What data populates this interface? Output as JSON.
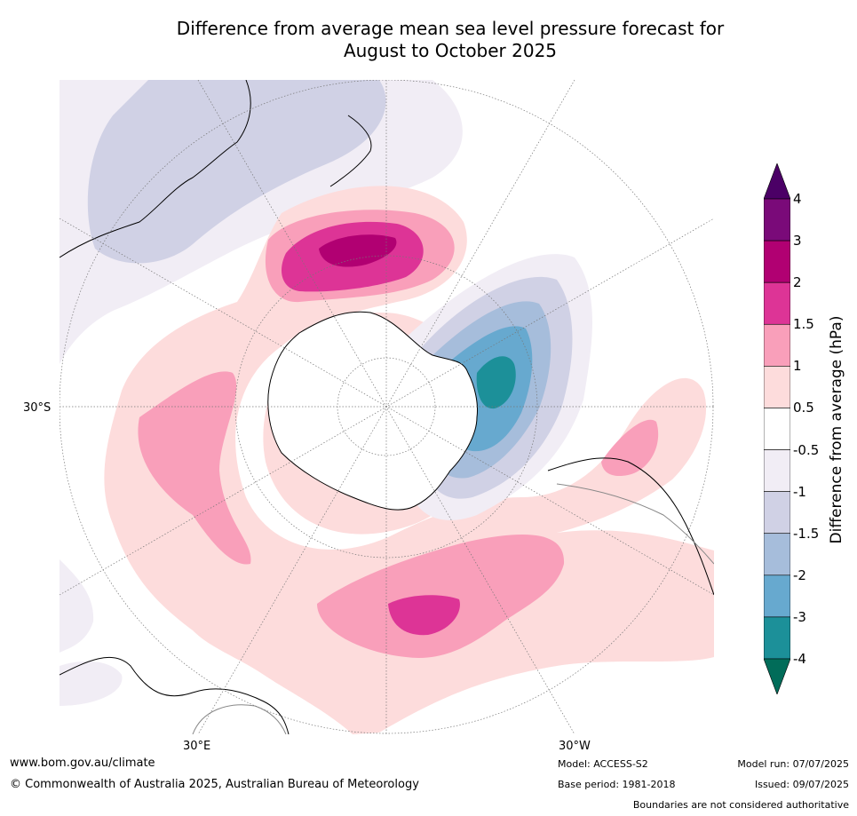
{
  "title": {
    "line1": "Difference from average mean sea level pressure forecast for",
    "line2": "August to October 2025"
  },
  "map": {
    "projection": "south-polar stereographic",
    "lat_label": "30°S",
    "lon_labels": {
      "east": "30°E",
      "west": "30°W"
    },
    "land_fill": "none",
    "grid": true
  },
  "colorbar": {
    "label": "Difference from average (hPa)",
    "tick_labels": [
      "4",
      "3",
      "2",
      "1.5",
      "1",
      "0.5",
      "-0.5",
      "-1",
      "-1.5",
      "-2",
      "-3",
      "-4"
    ],
    "bins": [
      {
        "range": "> 4",
        "color": "#4b0066"
      },
      {
        "range": "3 to 4",
        "color": "#7a0a79"
      },
      {
        "range": "2 to 3",
        "color": "#b10072"
      },
      {
        "range": "1.5 to 2",
        "color": "#dd3496"
      },
      {
        "range": "1 to 1.5",
        "color": "#f99fba"
      },
      {
        "range": "0.5 to 1",
        "color": "#fddcdc"
      },
      {
        "range": "-0.5 to 0.5",
        "color": "#ffffff"
      },
      {
        "range": "-1 to -0.5",
        "color": "#f1edf5"
      },
      {
        "range": "-1.5 to -1",
        "color": "#d0d1e5"
      },
      {
        "range": "-2 to -1.5",
        "color": "#a6bddb"
      },
      {
        "range": "-3 to -2",
        "color": "#67a9cf"
      },
      {
        "range": "-4 to -3",
        "color": "#1c9099"
      },
      {
        "range": "< -4",
        "color": "#016c59"
      }
    ]
  },
  "footer": {
    "website": "www.bom.gov.au/climate",
    "copyright": "© Commonwealth of Australia 2025, Australian Bureau of Meteorology",
    "model": "Model: ACCESS-S2",
    "base_period": "Base period: 1981-2018",
    "model_run": "Model run: 07/07/2025",
    "issued": "Issued: 09/07/2025",
    "disclaimer": "Boundaries are not considered authoritative"
  }
}
